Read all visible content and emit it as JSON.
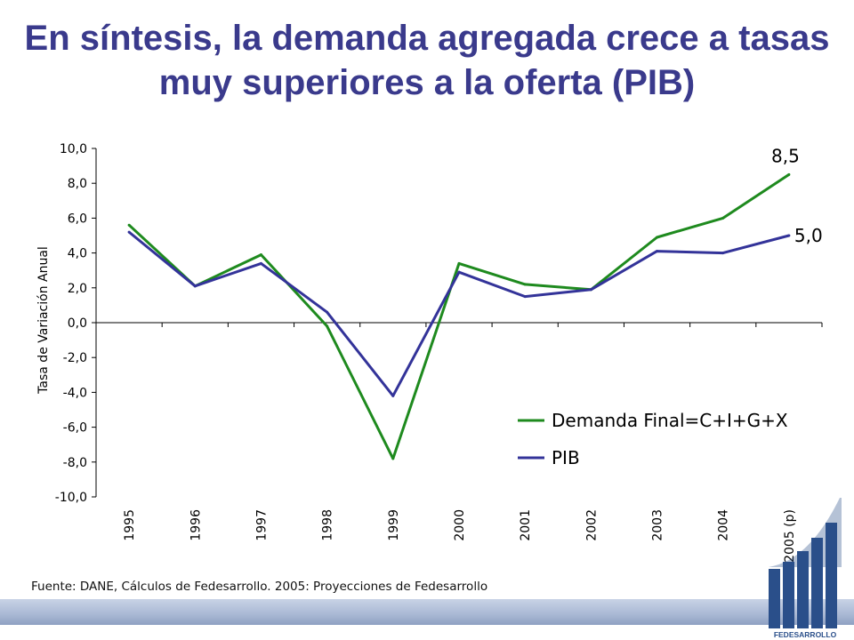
{
  "slide": {
    "title_line1": "En síntesis, la demanda agregada crece a tasas",
    "title_line2": "muy superiores a la oferta (PIB)",
    "source": "Fuente: DANE, Cálculos de Fedesarrollo. 2005: Proyecciones de Fedesarrollo",
    "logo_text": "FEDESARROLLO"
  },
  "chart_data": {
    "type": "line",
    "ylabel": "Tasa de Variación Anual",
    "categories": [
      "1995",
      "1996",
      "1997",
      "1998",
      "1999",
      "2000",
      "2001",
      "2002",
      "2003",
      "2004",
      "2005 (p)"
    ],
    "ylim": [
      -10,
      10
    ],
    "yticks": [
      "10,0",
      "8,0",
      "6,0",
      "4,0",
      "2,0",
      "0,0",
      "-2,0",
      "-4,0",
      "-6,0",
      "-8,0",
      "-10,0"
    ],
    "series": [
      {
        "name": "Demanda Final=C+I+G+X",
        "color": "#1e8a1e",
        "values": [
          5.6,
          2.1,
          3.9,
          -0.2,
          -7.8,
          3.4,
          2.2,
          1.9,
          4.9,
          6.0,
          8.5
        ],
        "end_label": "8,5"
      },
      {
        "name": "PIB",
        "color": "#333399",
        "values": [
          5.2,
          2.1,
          3.4,
          0.6,
          -4.2,
          2.9,
          1.5,
          1.9,
          4.1,
          4.0,
          5.0
        ],
        "end_label": "5,0"
      }
    ],
    "legend_position": "bottom-right",
    "grid": false
  },
  "colors": {
    "title": "#3a3a8c",
    "demand": "#1e8a1e",
    "pib": "#333399",
    "logo": "#2a4f8a"
  }
}
